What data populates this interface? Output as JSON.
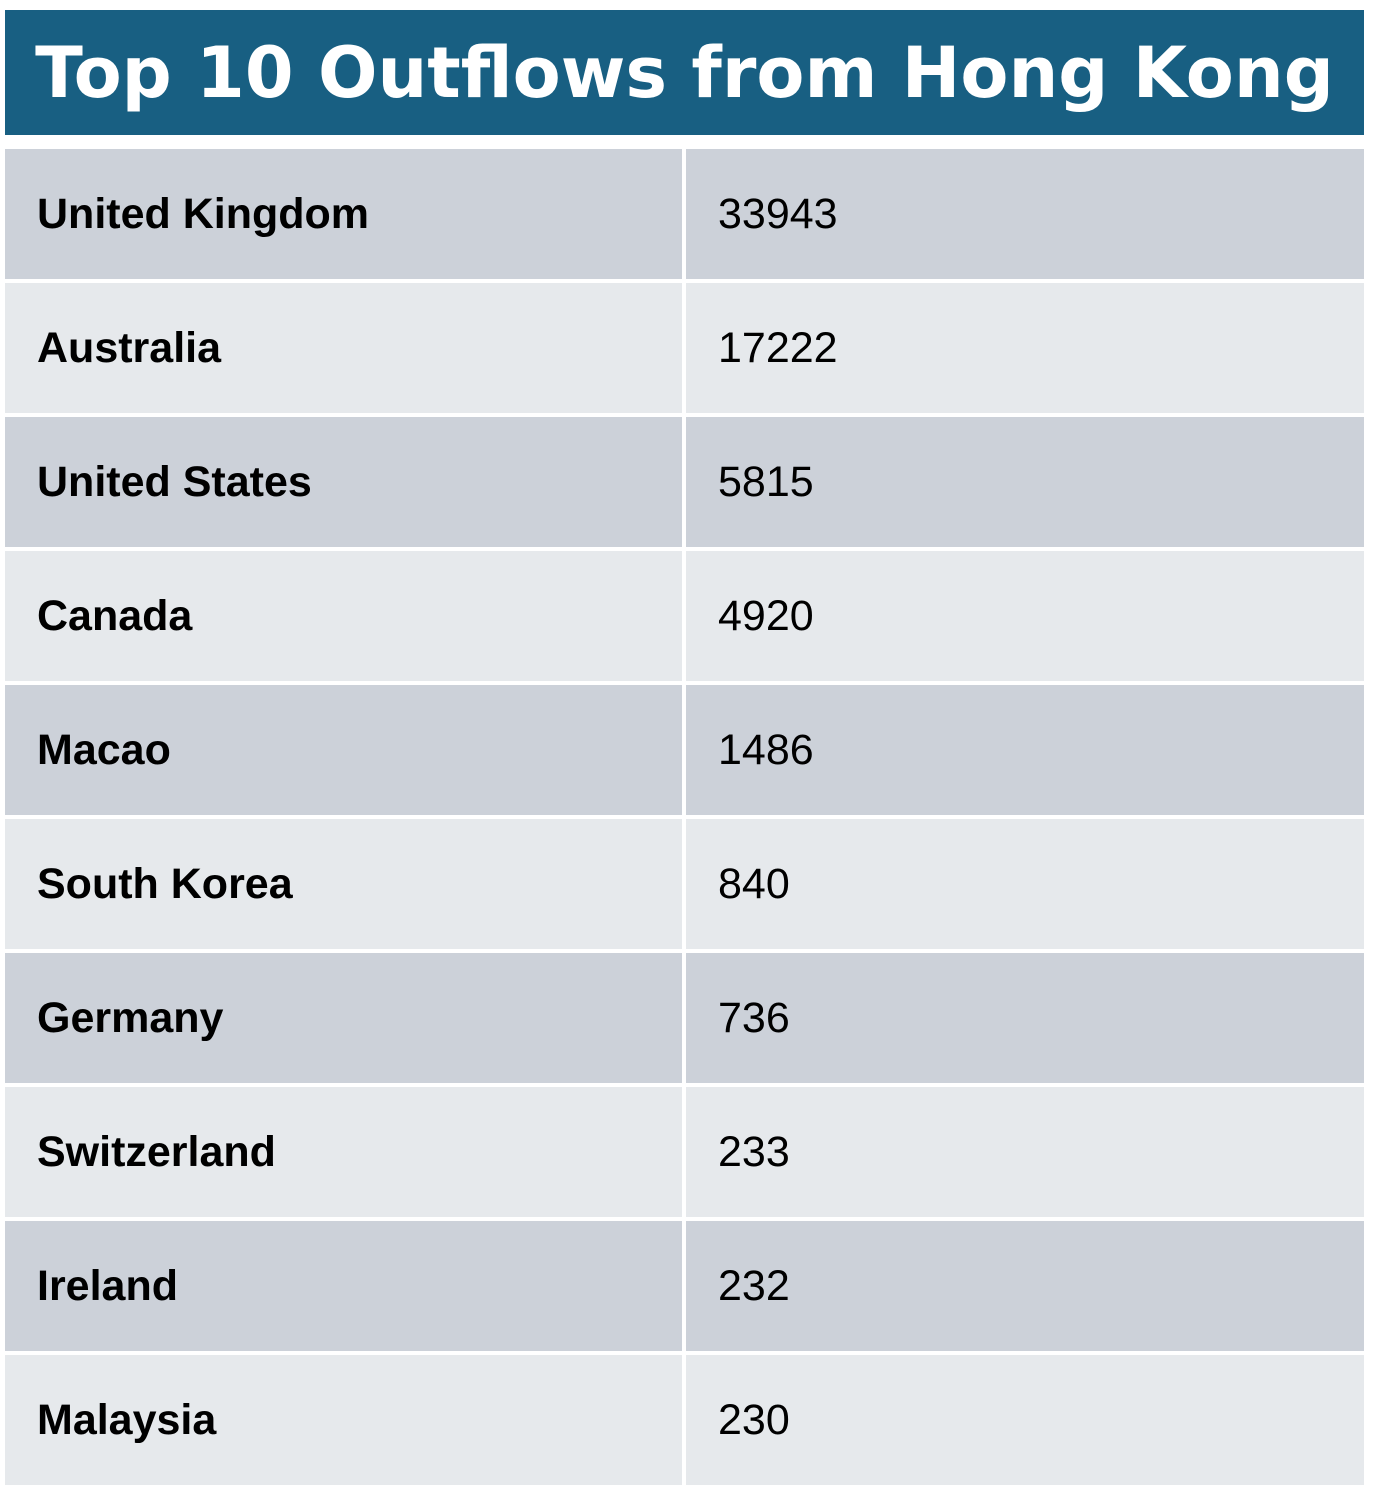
{
  "chart_data": {
    "type": "table",
    "title": "Top 10 Outflows from Hong Kong",
    "rows": [
      {
        "country": "United Kingdom",
        "value": 33943
      },
      {
        "country": "Australia",
        "value": 17222
      },
      {
        "country": "United States",
        "value": 5815
      },
      {
        "country": "Canada",
        "value": 4920
      },
      {
        "country": "Macao",
        "value": 1486
      },
      {
        "country": "South Korea",
        "value": 840
      },
      {
        "country": "Germany",
        "value": 736
      },
      {
        "country": "Switzerland",
        "value": 233
      },
      {
        "country": "Ireland",
        "value": 232
      },
      {
        "country": "Malaysia",
        "value": 230
      }
    ]
  },
  "colors": {
    "header_bg": "#185f82",
    "header_text": "#ffffff",
    "row_dark": "#ccd1d9",
    "row_light": "#e6e9ec"
  }
}
